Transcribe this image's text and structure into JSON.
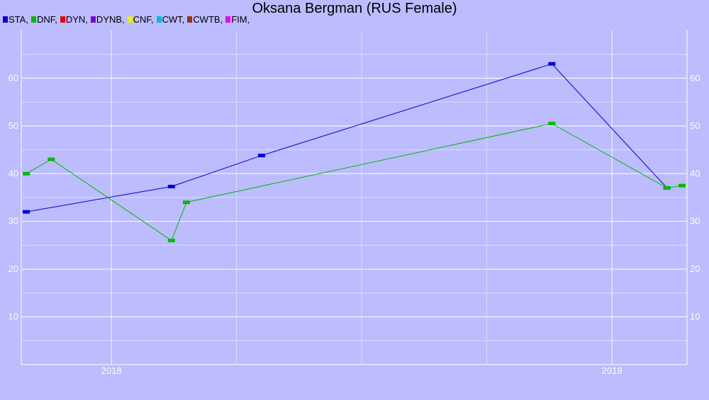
{
  "chart_data": {
    "type": "line",
    "title": "Oksana Bergman (RUS Female)",
    "legend": [
      {
        "name": "STA",
        "color": "#0000dd"
      },
      {
        "name": "DNF",
        "color": "#00bb00"
      },
      {
        "name": "DYN",
        "color": "#ee0000"
      },
      {
        "name": "DYNB",
        "color": "#7700dd"
      },
      {
        "name": "CNF",
        "color": "#eeee00"
      },
      {
        "name": "CWT",
        "color": "#00bbdd"
      },
      {
        "name": "CWTB",
        "color": "#993300"
      },
      {
        "name": "FIM",
        "color": "#ee00ee"
      }
    ],
    "legend_position": "top-left",
    "x_ticks": [
      "2018",
      "2019"
    ],
    "y_ticks": [
      10,
      20,
      30,
      40,
      50,
      60
    ],
    "ylim": [
      0,
      70
    ],
    "xlim": [
      2017.82,
      2019.15
    ],
    "grid": true,
    "series": [
      {
        "name": "STA",
        "color": "#0000dd",
        "x": [
          2017.83,
          2018.12,
          2018.3,
          2018.88,
          2019.11
        ],
        "y": [
          32,
          37.3,
          43.8,
          63,
          37
        ]
      },
      {
        "name": "DNF",
        "color": "#00bb00",
        "x": [
          2017.83,
          2017.88,
          2018.12,
          2018.15,
          2018.88,
          2019.11,
          2019.14
        ],
        "y": [
          40,
          43,
          26,
          34,
          50.5,
          37,
          37.5
        ]
      }
    ]
  }
}
